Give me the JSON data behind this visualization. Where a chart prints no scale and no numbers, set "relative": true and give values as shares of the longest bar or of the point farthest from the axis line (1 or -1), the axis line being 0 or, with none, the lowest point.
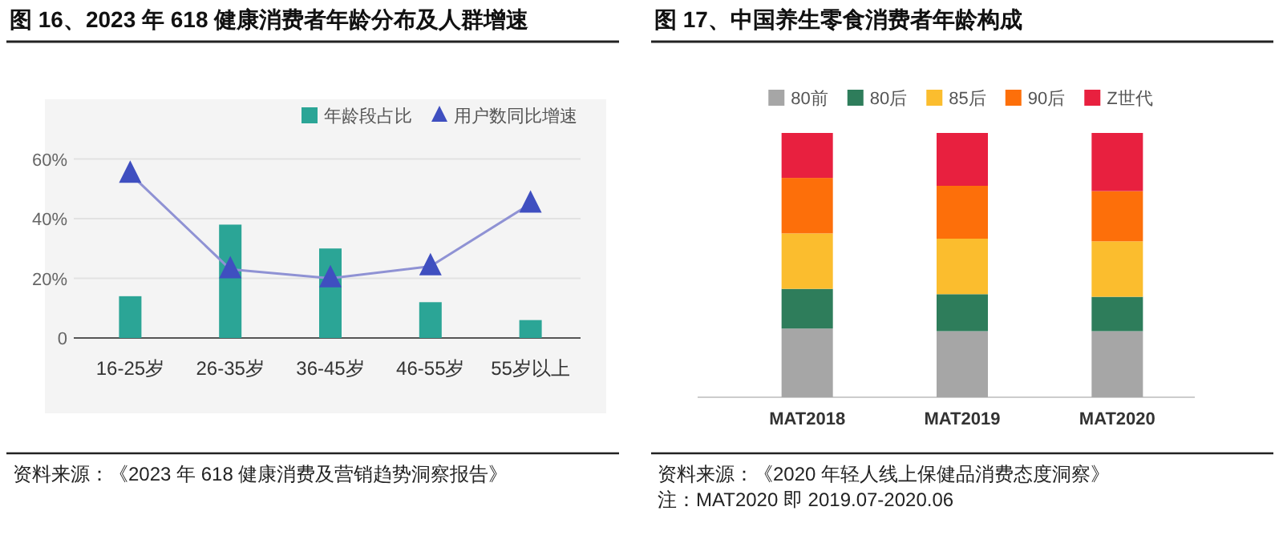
{
  "chart_data": [
    {
      "type": "bar",
      "title": "图 16、2023 年 618 健康消费者年龄分布及人群增速",
      "categories": [
        "16-25岁",
        "26-35岁",
        "36-45岁",
        "46-55岁",
        "55岁以上"
      ],
      "series": [
        {
          "name": "年龄段占比",
          "color": "#2ba596",
          "values": [
            14,
            38,
            30,
            12,
            6
          ]
        },
        {
          "name": "用户数同比增速",
          "type": "line",
          "color": "#3f4fc0",
          "marker": "triangle",
          "line_style": "solid",
          "values": [
            55,
            23,
            20,
            24,
            45
          ]
        }
      ],
      "ylim": [
        0,
        80
      ],
      "yticks": [
        {
          "value": 0,
          "label": "0"
        },
        {
          "value": 20,
          "label": "20%"
        },
        {
          "value": 40,
          "label": "40%"
        },
        {
          "value": 60,
          "label": "60%"
        }
      ],
      "grid": "y",
      "legend": "top right",
      "annotations": [
        "资料来源：《2023 年 618 健康消费及营销趋势洞察报告》"
      ]
    },
    {
      "type": "bar",
      "title": "图 17、中国养生零食消费者年龄构成",
      "categories": [
        "MAT2018",
        "MAT2019",
        "MAT2020"
      ],
      "stacked": true,
      "relative": true,
      "series": [
        {
          "name": "80前",
          "color": "#a6a6a6",
          "values": [
            0.26,
            0.25,
            0.25
          ]
        },
        {
          "name": "80后",
          "color": "#2e7d5b",
          "values": [
            0.15,
            0.14,
            0.13
          ]
        },
        {
          "name": "85后",
          "color": "#fbbd2e",
          "values": [
            0.21,
            0.21,
            0.21
          ]
        },
        {
          "name": "90后",
          "color": "#fd6f0a",
          "values": [
            0.21,
            0.2,
            0.19
          ]
        },
        {
          "name": "Z世代",
          "color": "#e8203f",
          "values": [
            0.17,
            0.2,
            0.22
          ]
        }
      ],
      "grid": false,
      "legend": "top",
      "annotations": [
        "资料来源：《2020 年轻人线上保健品消费态度洞察》",
        "注：MAT2020 即 2019.07-2020.06"
      ]
    }
  ]
}
